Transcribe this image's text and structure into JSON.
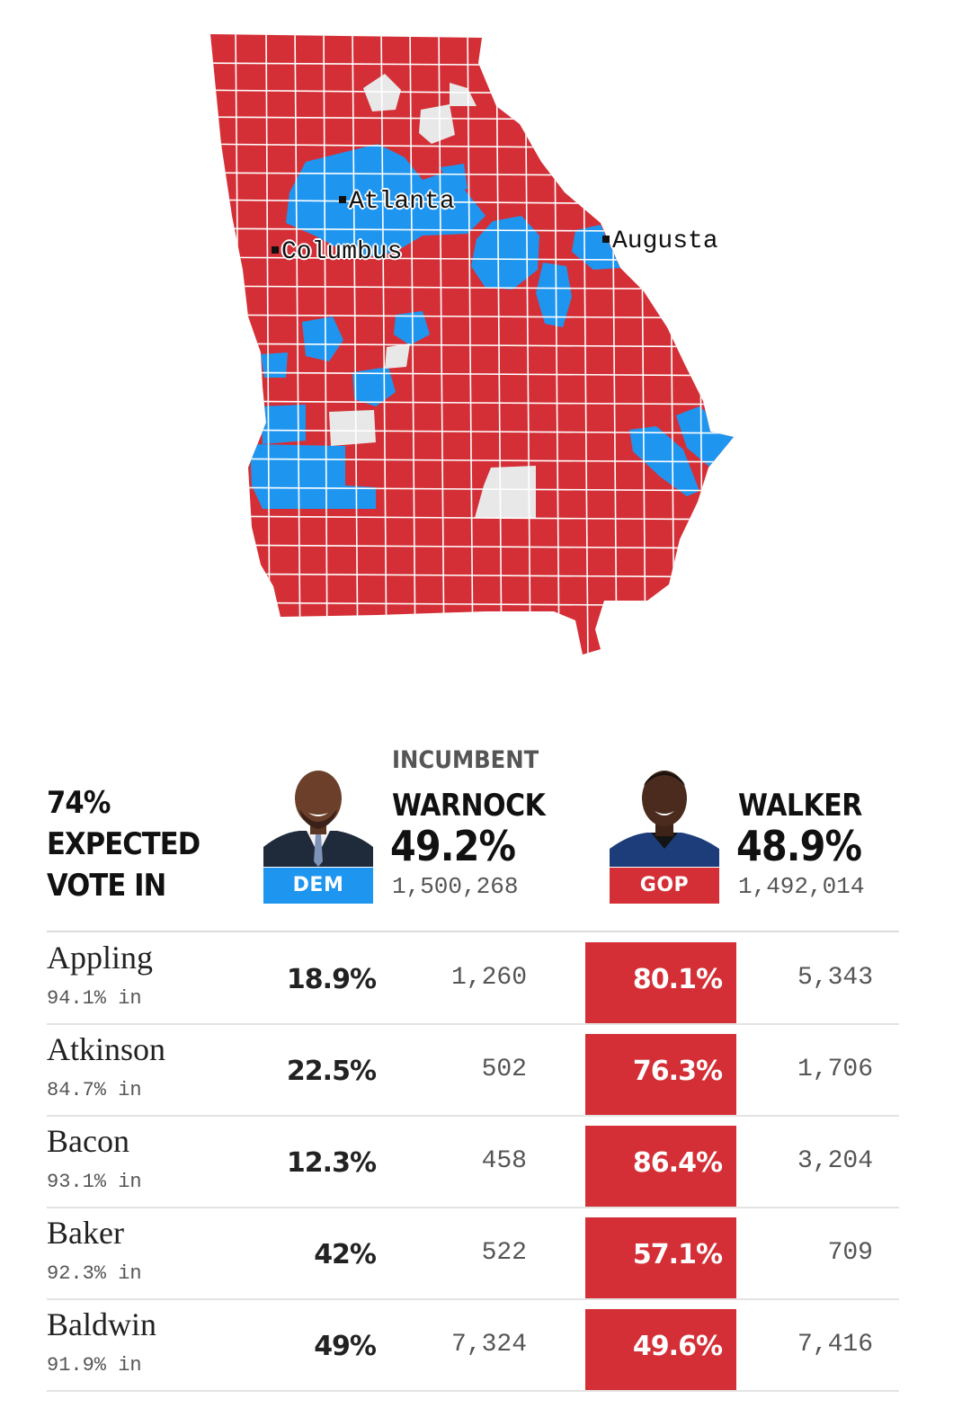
{
  "map": {
    "colors": {
      "rep": "#d42f36",
      "dem": "#1e96f0",
      "none": "#e8e8e8",
      "border": "#ffffff"
    },
    "cities": [
      {
        "name": "Atlanta"
      },
      {
        "name": "Columbus"
      },
      {
        "name": "Augusta"
      }
    ]
  },
  "summary": {
    "line1": "74%",
    "line2": "EXPECTED",
    "line3": "VOTE IN"
  },
  "candidates": {
    "dem": {
      "incumbent_label": "INCUMBENT",
      "name": "WARNOCK",
      "pct": "49.2%",
      "votes": "1,500,268",
      "party": "DEM",
      "color": "#1e96f0"
    },
    "gop": {
      "name": "WALKER",
      "pct": "48.9%",
      "votes": "1,492,014",
      "party": "GOP",
      "color": "#d42f36"
    }
  },
  "counties": [
    {
      "name": "Appling",
      "reporting": "94.1% in",
      "dem_pct": "18.9%",
      "dem_votes": "1,260",
      "gop_pct": "80.1%",
      "gop_votes": "5,343"
    },
    {
      "name": "Atkinson",
      "reporting": "84.7% in",
      "dem_pct": "22.5%",
      "dem_votes": "502",
      "gop_pct": "76.3%",
      "gop_votes": "1,706"
    },
    {
      "name": "Bacon",
      "reporting": "93.1% in",
      "dem_pct": "12.3%",
      "dem_votes": "458",
      "gop_pct": "86.4%",
      "gop_votes": "3,204"
    },
    {
      "name": "Baker",
      "reporting": "92.3% in",
      "dem_pct": "42%",
      "dem_votes": "522",
      "gop_pct": "57.1%",
      "gop_votes": "709"
    },
    {
      "name": "Baldwin",
      "reporting": "91.9% in",
      "dem_pct": "49%",
      "dem_votes": "7,324",
      "gop_pct": "49.6%",
      "gop_votes": "7,416"
    }
  ]
}
